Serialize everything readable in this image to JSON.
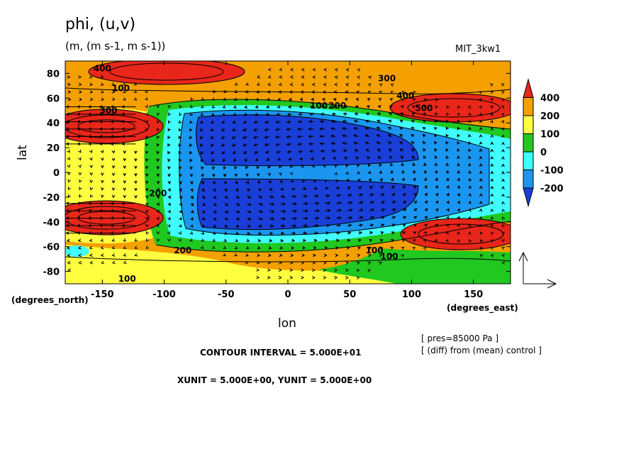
{
  "chart_data": {
    "type": "heatmap",
    "title": "phi, (u,v)",
    "units_line": "(m, (m s-1, m s-1))",
    "dataset": "MIT_3kw1",
    "xlabel": "lon",
    "ylabel": "lat",
    "x_unit_label": "(degrees_east)",
    "y_unit_label": "(degrees_north)",
    "xlim": [
      -180,
      180
    ],
    "ylim": [
      -90,
      90
    ],
    "xticks": [
      -150,
      -100,
      -50,
      0,
      50,
      100,
      150
    ],
    "yticks": [
      80,
      60,
      40,
      20,
      0,
      -20,
      -40,
      -60,
      -80
    ],
    "colorbar": {
      "levels": [
        -300,
        -200,
        -100,
        0,
        100,
        200,
        400,
        600
      ],
      "tick_labels": [
        400,
        200,
        100,
        0,
        -100,
        -200
      ],
      "colors": [
        "#e8261a",
        "#f4a000",
        "#ffff40",
        "#20c820",
        "#40ffff",
        "#1a96f0",
        "#1a3fd8"
      ]
    },
    "contour_labels": [
      {
        "lon": -150,
        "lat": 84,
        "text": "400"
      },
      {
        "lon": -135,
        "lat": 68,
        "text": "100"
      },
      {
        "lon": 80,
        "lat": 76,
        "text": "300"
      },
      {
        "lon": 95,
        "lat": 62,
        "text": "400"
      },
      {
        "lon": 110,
        "lat": 52,
        "text": "500"
      },
      {
        "lon": 25,
        "lat": 54,
        "text": "100"
      },
      {
        "lon": 40,
        "lat": 54,
        "text": "200"
      },
      {
        "lon": -145,
        "lat": 50,
        "text": "300"
      },
      {
        "lon": -105,
        "lat": -17,
        "text": "200"
      },
      {
        "lon": -85,
        "lat": -63,
        "text": "200"
      },
      {
        "lon": 70,
        "lat": -63,
        "text": "100"
      },
      {
        "lon": 82,
        "lat": -68,
        "text": "100"
      },
      {
        "lon": -130,
        "lat": -86,
        "text": "100"
      }
    ],
    "contour_interval": "CONTOUR INTERVAL = 5.000E+01",
    "vector_units": "XUNIT = 5.000E+00, YUNIT = 5.000E+00",
    "level": "[ pres=85000 Pa ]",
    "note": "[ (diff) from (mean) control ]"
  }
}
